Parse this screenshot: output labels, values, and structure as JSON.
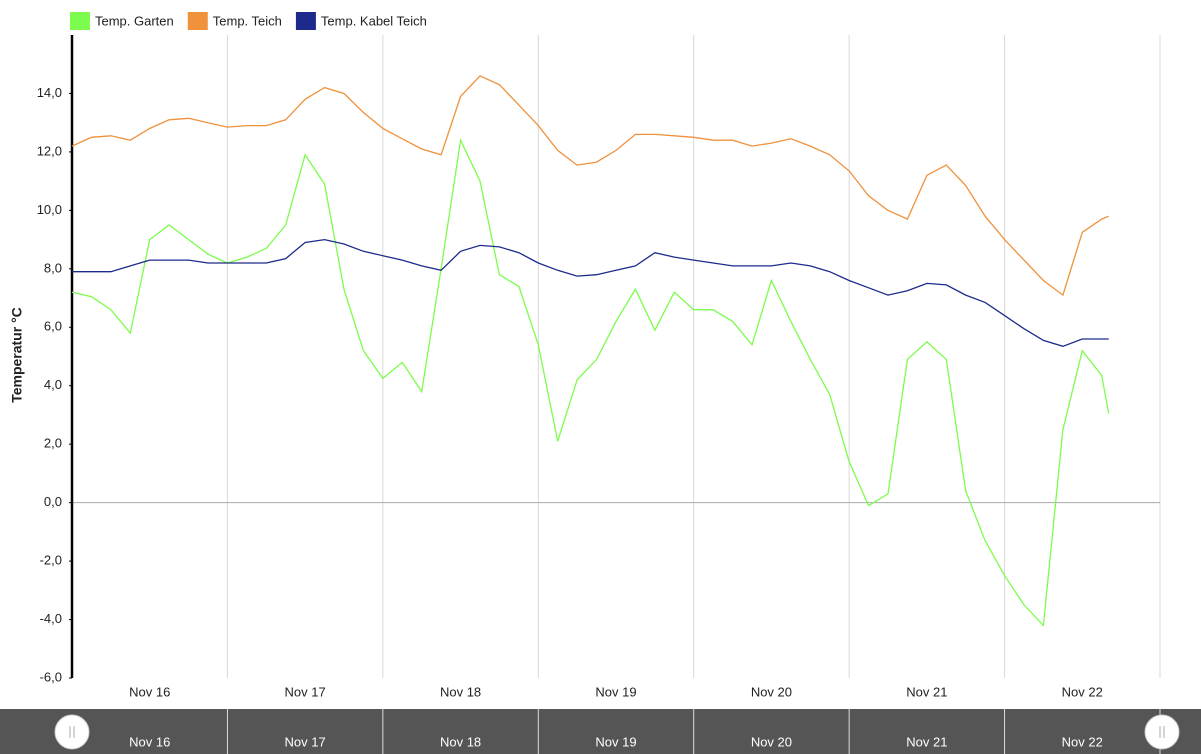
{
  "chart_data": {
    "type": "line",
    "y_label": "Temperatur °C",
    "x": [
      0,
      0.125,
      0.25,
      0.375,
      0.5,
      0.625,
      0.75,
      0.875,
      1,
      1.125,
      1.25,
      1.375,
      1.5,
      1.625,
      1.75,
      1.875,
      2,
      2.125,
      2.25,
      2.375,
      2.5,
      2.625,
      2.75,
      2.875,
      3,
      3.125,
      3.25,
      3.375,
      3.5,
      3.625,
      3.75,
      3.875,
      4,
      4.125,
      4.25,
      4.375,
      4.5,
      4.625,
      4.75,
      4.875,
      5,
      5.125,
      5.25,
      5.375,
      5.5,
      5.625,
      5.75,
      5.875,
      6,
      6.125,
      6.25,
      6.375,
      6.5,
      6.625,
      6.67
    ],
    "series": [
      {
        "name": "Temp. Garten",
        "color": "#7cfc4c",
        "values": [
          7.2,
          7.05,
          6.6,
          5.8,
          9.0,
          9.5,
          9.0,
          8.5,
          8.2,
          8.4,
          8.7,
          9.5,
          11.9,
          10.9,
          7.3,
          5.2,
          4.25,
          4.8,
          3.8,
          8.0,
          12.4,
          11.0,
          7.8,
          7.4,
          5.4,
          2.1,
          4.2,
          4.9,
          6.2,
          7.3,
          5.9,
          7.2,
          6.6,
          6.6,
          6.2,
          5.4,
          7.6,
          6.2,
          4.9,
          3.7,
          1.4,
          -0.1,
          0.3,
          4.9,
          5.5,
          4.9,
          0.4,
          -1.3,
          -2.5,
          -3.5,
          -4.2,
          2.5,
          5.2,
          4.35,
          3.05
        ]
      },
      {
        "name": "Temp. Teich",
        "color": "#f0913c",
        "values": [
          12.2,
          12.5,
          12.55,
          12.4,
          12.8,
          13.1,
          13.15,
          13.0,
          12.85,
          12.9,
          12.9,
          13.1,
          13.8,
          14.2,
          14.0,
          13.35,
          12.8,
          12.45,
          12.1,
          11.9,
          13.9,
          14.6,
          14.3,
          13.6,
          12.9,
          12.05,
          11.55,
          11.65,
          12.05,
          12.6,
          12.6,
          12.55,
          12.5,
          12.4,
          12.4,
          12.2,
          12.3,
          12.45,
          12.2,
          11.9,
          11.35,
          10.5,
          10.0,
          9.7,
          11.2,
          11.55,
          10.85,
          9.8,
          9.0,
          8.3,
          7.6,
          7.1,
          9.25,
          9.7,
          9.8
        ]
      },
      {
        "name": "Temp. Kabel Teich",
        "color": "#1c2a8c",
        "values": [
          7.9,
          7.9,
          7.9,
          8.1,
          8.3,
          8.3,
          8.3,
          8.2,
          8.2,
          8.2,
          8.2,
          8.35,
          8.9,
          9.0,
          8.85,
          8.6,
          8.45,
          8.3,
          8.1,
          7.95,
          8.6,
          8.8,
          8.75,
          8.55,
          8.2,
          7.95,
          7.75,
          7.8,
          7.95,
          8.1,
          8.55,
          8.4,
          8.3,
          8.2,
          8.1,
          8.1,
          8.1,
          8.2,
          8.1,
          7.9,
          7.6,
          7.35,
          7.1,
          7.25,
          7.5,
          7.45,
          7.1,
          6.85,
          6.4,
          5.95,
          5.55,
          5.35,
          5.6,
          5.6,
          5.6
        ]
      }
    ],
    "xlim": [
      0,
      7
    ],
    "xticks": [
      {
        "value": 0.5,
        "label": "Nov 16"
      },
      {
        "value": 1.5,
        "label": "Nov 17"
      },
      {
        "value": 2.5,
        "label": "Nov 18"
      },
      {
        "value": 3.5,
        "label": "Nov 19"
      },
      {
        "value": 4.5,
        "label": "Nov 20"
      },
      {
        "value": 5.5,
        "label": "Nov 21"
      },
      {
        "value": 6.5,
        "label": "Nov 22"
      }
    ],
    "ylim": [
      -6,
      16
    ],
    "yticks": [
      {
        "value": -6,
        "label": "-6,0"
      },
      {
        "value": -4,
        "label": "-4,0"
      },
      {
        "value": -2,
        "label": "-2,0"
      },
      {
        "value": 0,
        "label": "0,0"
      },
      {
        "value": 2,
        "label": "2,0"
      },
      {
        "value": 4,
        "label": "4,0"
      },
      {
        "value": 6,
        "label": "6,0"
      },
      {
        "value": 8,
        "label": "8,0"
      },
      {
        "value": 10,
        "label": "10,0"
      },
      {
        "value": 12,
        "label": "12,0"
      },
      {
        "value": 14,
        "label": "14,0"
      }
    ]
  }
}
